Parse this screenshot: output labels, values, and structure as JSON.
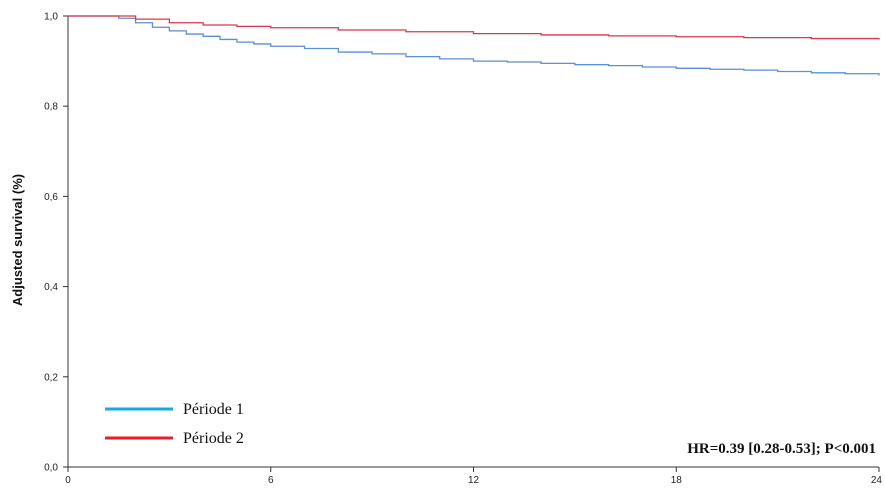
{
  "chart_data": {
    "type": "line",
    "title": "",
    "xlabel": "",
    "ylabel": "Adjusted survival (%)",
    "xlim": [
      0,
      24
    ],
    "ylim": [
      0.0,
      1.0
    ],
    "x_ticks": [
      0,
      6,
      12,
      18,
      24
    ],
    "x_tick_labels": [
      "0",
      "6",
      "12",
      "18",
      "24"
    ],
    "y_ticks": [
      0.0,
      0.2,
      0.4,
      0.6,
      0.8,
      1.0
    ],
    "y_tick_labels": [
      "0,0",
      "0,2",
      "0,4",
      "0,6",
      "0,8",
      "1,0"
    ],
    "grid": false,
    "legend_position": "bottom-left",
    "annotation": "HR=0.39 [0.28-0.53]; P<0.001",
    "series": [
      {
        "name": "Période 1",
        "color": "#5b8fd6",
        "legend_color": "#1aa7e0",
        "x": [
          0,
          1.2,
          1.5,
          2,
          2.5,
          3,
          3.5,
          4,
          4.5,
          5,
          5.5,
          6,
          7,
          8,
          9,
          10,
          11,
          12,
          13,
          14,
          15,
          16,
          17,
          18,
          19,
          20,
          21,
          22,
          23,
          24
        ],
        "y": [
          1.0,
          1.0,
          0.995,
          0.985,
          0.975,
          0.967,
          0.96,
          0.955,
          0.948,
          0.942,
          0.938,
          0.933,
          0.928,
          0.92,
          0.916,
          0.91,
          0.905,
          0.9,
          0.898,
          0.895,
          0.892,
          0.89,
          0.887,
          0.884,
          0.882,
          0.88,
          0.877,
          0.874,
          0.872,
          0.868
        ]
      },
      {
        "name": "Période 2",
        "color": "#d6394a",
        "legend_color": "#e0202a",
        "x": [
          0,
          1.2,
          2,
          3,
          4,
          5,
          6,
          8,
          10,
          12,
          14,
          16,
          18,
          20,
          22,
          24
        ],
        "y": [
          1.0,
          1.0,
          0.993,
          0.985,
          0.98,
          0.977,
          0.974,
          0.969,
          0.965,
          0.961,
          0.958,
          0.956,
          0.954,
          0.952,
          0.95,
          0.948
        ]
      }
    ]
  }
}
